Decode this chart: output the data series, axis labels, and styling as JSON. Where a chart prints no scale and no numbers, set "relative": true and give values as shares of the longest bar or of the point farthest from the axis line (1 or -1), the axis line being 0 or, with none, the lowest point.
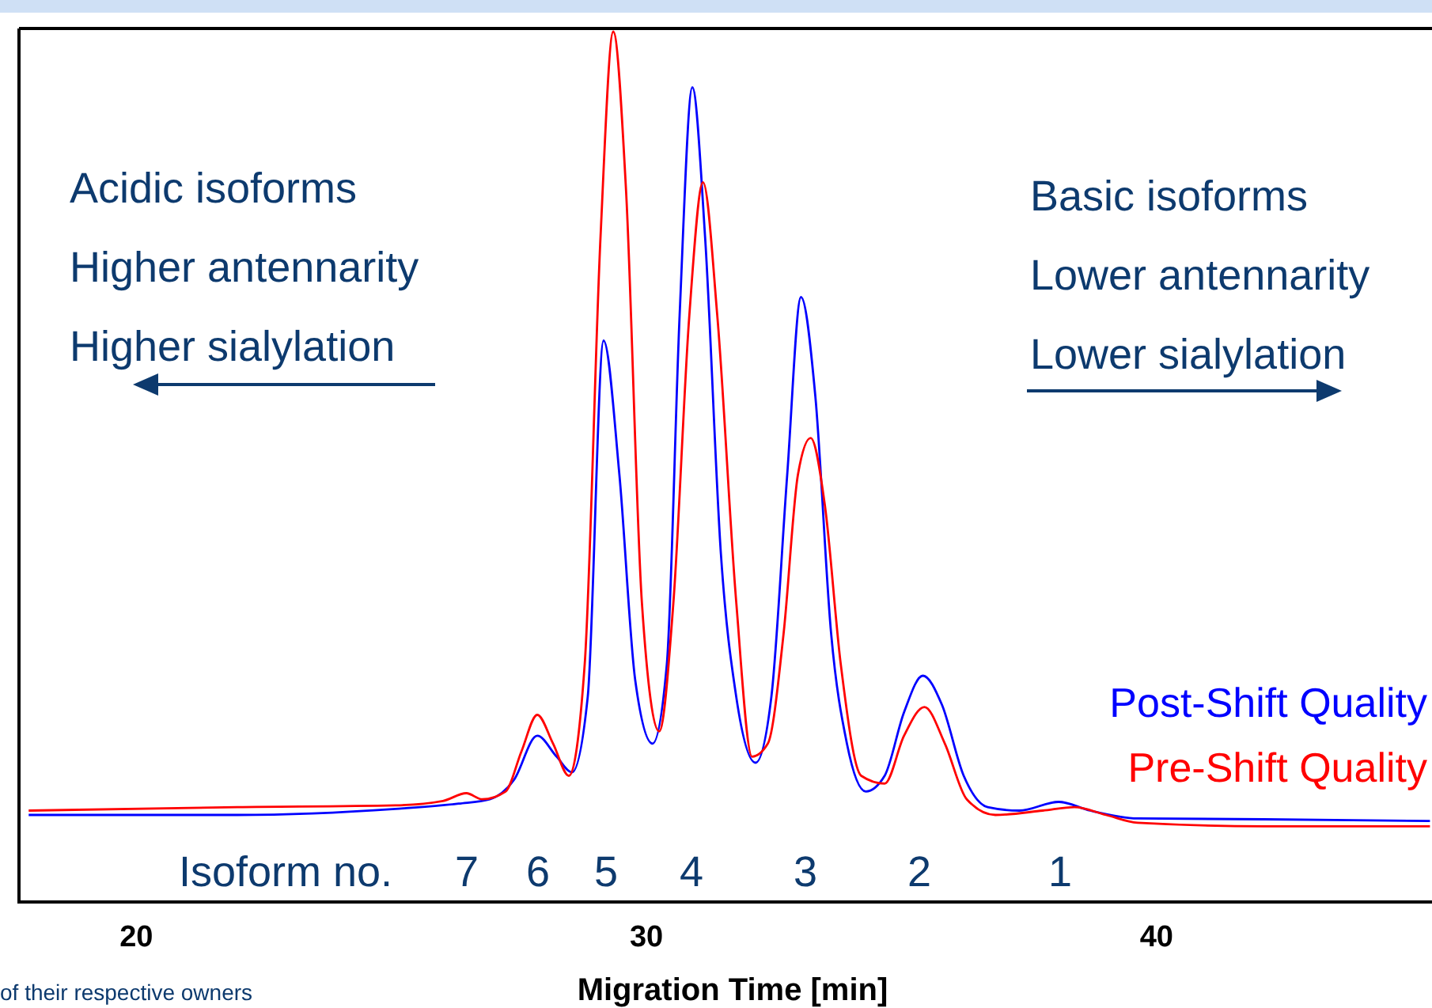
{
  "chart_data": {
    "type": "line",
    "xlabel": "Migration Time [min]",
    "relative": true,
    "xlim": [
      17.7,
      45.4
    ],
    "xticks": [
      20,
      30,
      40
    ],
    "tick_labels": "x",
    "grid": false,
    "legend": "bottom right",
    "marker": "none",
    "line_style": "solid",
    "series": [
      {
        "name": "Post-Shift Quality",
        "color": "#0000ff",
        "x": [
          17.89,
          21.98,
          25.08,
          26.32,
          26.93,
          27.4,
          27.86,
          28.24,
          28.54,
          28.85,
          29.16,
          29.47,
          29.78,
          30.12,
          30.4,
          30.65,
          30.9,
          31.15,
          31.46,
          31.76,
          32.14,
          32.45,
          32.76,
          33.03,
          33.31,
          33.62,
          33.93,
          34.3,
          34.67,
          35.05,
          35.42,
          35.79,
          36.22,
          36.69,
          37.31,
          38.08,
          38.7,
          39.63,
          42.11,
          45.36
        ],
        "values": [
          0.1,
          0.1,
          0.107,
          0.113,
          0.118,
          0.14,
          0.191,
          0.167,
          0.149,
          0.236,
          0.645,
          0.491,
          0.255,
          0.182,
          0.273,
          0.673,
          0.936,
          0.764,
          0.4,
          0.236,
          0.16,
          0.236,
          0.491,
          0.695,
          0.582,
          0.309,
          0.182,
          0.127,
          0.145,
          0.218,
          0.26,
          0.227,
          0.145,
          0.109,
          0.105,
          0.115,
          0.105,
          0.096,
          0.095,
          0.093
        ]
      },
      {
        "name": "Pre-Shift Quality",
        "color": "#ff0000",
        "x": [
          17.89,
          21.98,
          25.08,
          26.01,
          26.47,
          26.78,
          27.24,
          27.55,
          27.86,
          28.17,
          28.48,
          28.79,
          29.1,
          29.35,
          29.6,
          29.91,
          30.25,
          30.53,
          30.84,
          31.11,
          31.39,
          31.76,
          32.07,
          32.38,
          32.69,
          32.97,
          33.22,
          33.5,
          33.81,
          34.21,
          34.67,
          35.05,
          35.45,
          35.85,
          36.28,
          36.84,
          37.77,
          38.39,
          39.01,
          39.63,
          42.11,
          45.36
        ],
        "values": [
          0.105,
          0.109,
          0.111,
          0.116,
          0.125,
          0.118,
          0.127,
          0.173,
          0.215,
          0.182,
          0.145,
          0.273,
          0.764,
          1,
          0.818,
          0.345,
          0.196,
          0.345,
          0.673,
          0.827,
          0.673,
          0.345,
          0.167,
          0.182,
          0.309,
          0.491,
          0.533,
          0.455,
          0.273,
          0.145,
          0.136,
          0.191,
          0.224,
          0.182,
          0.118,
          0.1,
          0.105,
          0.109,
          0.1,
          0.091,
          0.087,
          0.087
        ]
      }
    ],
    "annotations": [
      "Acidic isoforms",
      "Higher antennarity",
      "Higher sialylation",
      "Basic isoforms",
      "Lower antennarity",
      "Lower sialylation",
      "Isoform no.",
      "7",
      "6",
      "5",
      "4",
      "3",
      "2",
      "1",
      "of their respective owners"
    ]
  }
}
